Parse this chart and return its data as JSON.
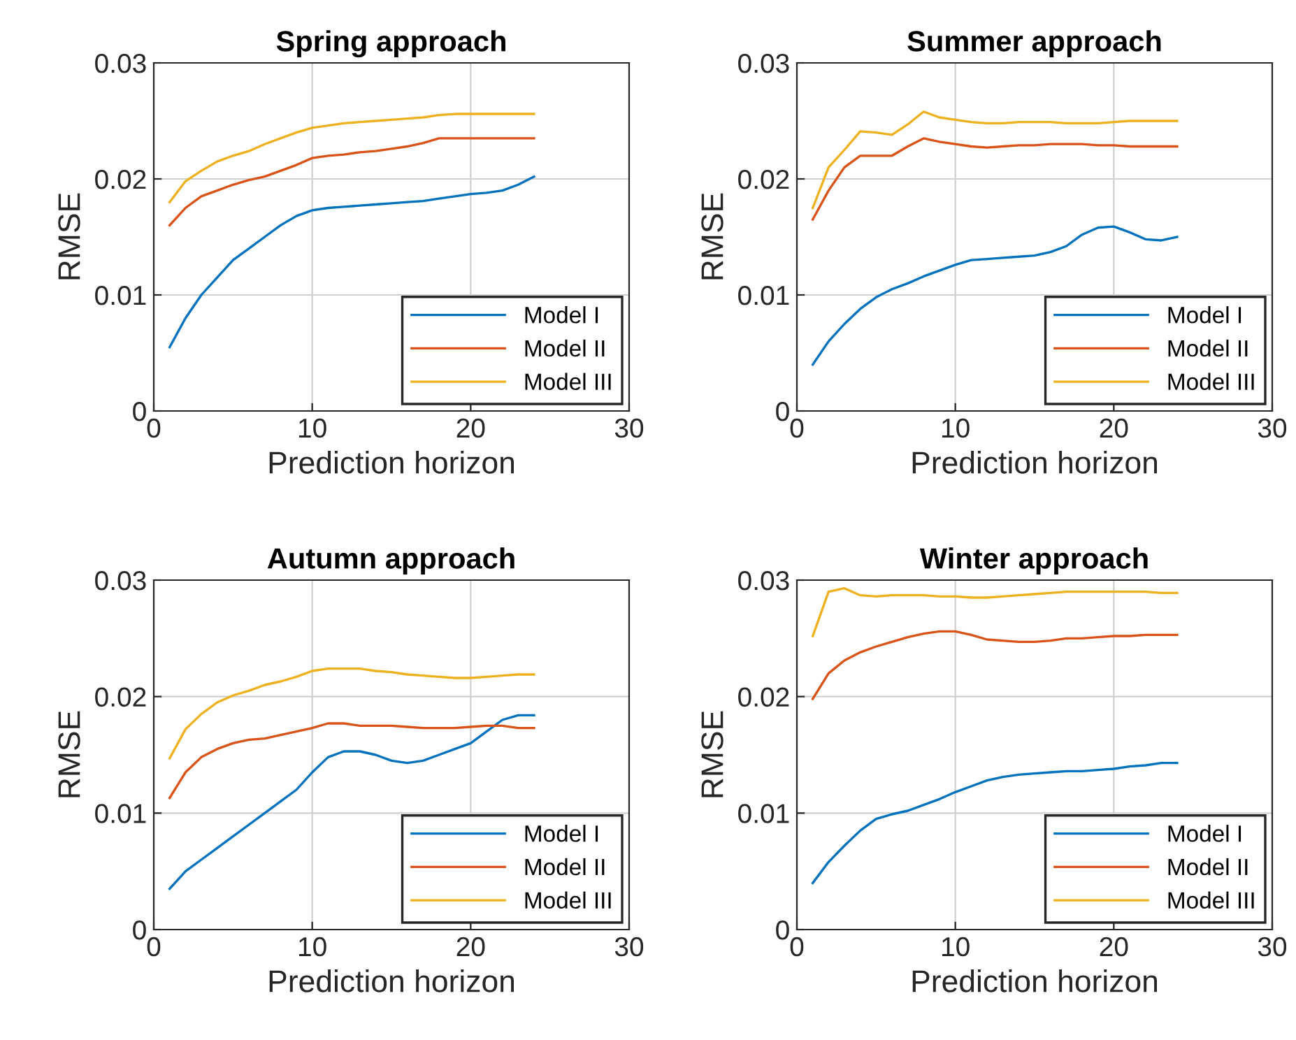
{
  "chart_data": [
    {
      "type": "line",
      "title": "Spring approach",
      "xlabel": "Prediction horizon",
      "ylabel": "RMSE",
      "x": [
        1,
        2,
        3,
        4,
        5,
        6,
        7,
        8,
        9,
        10,
        11,
        12,
        13,
        14,
        15,
        16,
        17,
        18,
        19,
        20,
        21,
        22,
        23,
        24
      ],
      "xlim": [
        0,
        30
      ],
      "xticks": [
        0,
        10,
        20,
        30
      ],
      "ylim": [
        0,
        0.03
      ],
      "yticks": [
        0,
        0.01,
        0.02,
        0.03
      ],
      "grid": true,
      "legend": "bottom right",
      "series": [
        {
          "name": "Model I",
          "color": "#0072bd",
          "values": [
            0.0055,
            0.008,
            0.01,
            0.0115,
            0.013,
            0.014,
            0.015,
            0.016,
            0.0168,
            0.0173,
            0.0175,
            0.0176,
            0.0177,
            0.0178,
            0.0179,
            0.018,
            0.0181,
            0.0183,
            0.0185,
            0.0187,
            0.0188,
            0.019,
            0.0195,
            0.0202
          ]
        },
        {
          "name": "Model II",
          "color": "#d95319",
          "values": [
            0.016,
            0.0175,
            0.0185,
            0.019,
            0.0195,
            0.0199,
            0.0202,
            0.0207,
            0.0212,
            0.0218,
            0.022,
            0.0221,
            0.0223,
            0.0224,
            0.0226,
            0.0228,
            0.0231,
            0.0235,
            0.0235,
            0.0235,
            0.0235,
            0.0235,
            0.0235,
            0.0235
          ]
        },
        {
          "name": "Model III",
          "color": "#edb120",
          "values": [
            0.018,
            0.0198,
            0.0207,
            0.0215,
            0.022,
            0.0224,
            0.023,
            0.0235,
            0.024,
            0.0244,
            0.0246,
            0.0248,
            0.0249,
            0.025,
            0.0251,
            0.0252,
            0.0253,
            0.0255,
            0.0256,
            0.0256,
            0.0256,
            0.0256,
            0.0256,
            0.0256
          ]
        }
      ]
    },
    {
      "type": "line",
      "title": "Summer approach",
      "xlabel": "Prediction horizon",
      "ylabel": "RMSE",
      "x": [
        1,
        2,
        3,
        4,
        5,
        6,
        7,
        8,
        9,
        10,
        11,
        12,
        13,
        14,
        15,
        16,
        17,
        18,
        19,
        20,
        21,
        22,
        23,
        24
      ],
      "xlim": [
        0,
        30
      ],
      "xticks": [
        0,
        10,
        20,
        30
      ],
      "ylim": [
        0,
        0.03
      ],
      "yticks": [
        0,
        0.01,
        0.02,
        0.03
      ],
      "grid": true,
      "legend": "bottom right",
      "series": [
        {
          "name": "Model I",
          "color": "#0072bd",
          "values": [
            0.004,
            0.006,
            0.0075,
            0.0088,
            0.0098,
            0.0105,
            0.011,
            0.0116,
            0.0121,
            0.0126,
            0.013,
            0.0131,
            0.0132,
            0.0133,
            0.0134,
            0.0137,
            0.0142,
            0.0152,
            0.0158,
            0.0159,
            0.0154,
            0.0148,
            0.0147,
            0.015
          ]
        },
        {
          "name": "Model II",
          "color": "#d95319",
          "values": [
            0.0165,
            0.019,
            0.021,
            0.022,
            0.022,
            0.022,
            0.0228,
            0.0235,
            0.0232,
            0.023,
            0.0228,
            0.0227,
            0.0228,
            0.0229,
            0.0229,
            0.023,
            0.023,
            0.023,
            0.0229,
            0.0229,
            0.0228,
            0.0228,
            0.0228,
            0.0228
          ]
        },
        {
          "name": "Model III",
          "color": "#edb120",
          "values": [
            0.0175,
            0.021,
            0.0225,
            0.0241,
            0.024,
            0.0238,
            0.0247,
            0.0258,
            0.0253,
            0.0251,
            0.0249,
            0.0248,
            0.0248,
            0.0249,
            0.0249,
            0.0249,
            0.0248,
            0.0248,
            0.0248,
            0.0249,
            0.025,
            0.025,
            0.025,
            0.025
          ]
        }
      ]
    },
    {
      "type": "line",
      "title": "Autumn approach",
      "xlabel": "Prediction horizon",
      "ylabel": "RMSE",
      "x": [
        1,
        2,
        3,
        4,
        5,
        6,
        7,
        8,
        9,
        10,
        11,
        12,
        13,
        14,
        15,
        16,
        17,
        18,
        19,
        20,
        21,
        22,
        23,
        24
      ],
      "xlim": [
        0,
        30
      ],
      "xticks": [
        0,
        10,
        20,
        30
      ],
      "ylim": [
        0,
        0.03
      ],
      "yticks": [
        0,
        0.01,
        0.02,
        0.03
      ],
      "grid": true,
      "legend": "bottom right",
      "series": [
        {
          "name": "Model I",
          "color": "#0072bd",
          "values": [
            0.0035,
            0.005,
            0.006,
            0.007,
            0.008,
            0.009,
            0.01,
            0.011,
            0.012,
            0.0135,
            0.0148,
            0.0153,
            0.0153,
            0.015,
            0.0145,
            0.0143,
            0.0145,
            0.015,
            0.0155,
            0.016,
            0.017,
            0.018,
            0.0184,
            0.0184
          ]
        },
        {
          "name": "Model II",
          "color": "#d95319",
          "values": [
            0.0113,
            0.0135,
            0.0148,
            0.0155,
            0.016,
            0.0163,
            0.0164,
            0.0167,
            0.017,
            0.0173,
            0.0177,
            0.0177,
            0.0175,
            0.0175,
            0.0175,
            0.0174,
            0.0173,
            0.0173,
            0.0173,
            0.0174,
            0.0175,
            0.0175,
            0.0173,
            0.0173
          ]
        },
        {
          "name": "Model III",
          "color": "#edb120",
          "values": [
            0.0147,
            0.0172,
            0.0185,
            0.0195,
            0.0201,
            0.0205,
            0.021,
            0.0213,
            0.0217,
            0.0222,
            0.0224,
            0.0224,
            0.0224,
            0.0222,
            0.0221,
            0.0219,
            0.0218,
            0.0217,
            0.0216,
            0.0216,
            0.0217,
            0.0218,
            0.0219,
            0.0219
          ]
        }
      ]
    },
    {
      "type": "line",
      "title": "Winter approach",
      "xlabel": "Prediction horizon",
      "ylabel": "RMSE",
      "x": [
        1,
        2,
        3,
        4,
        5,
        6,
        7,
        8,
        9,
        10,
        11,
        12,
        13,
        14,
        15,
        16,
        17,
        18,
        19,
        20,
        21,
        22,
        23,
        24
      ],
      "xlim": [
        0,
        30
      ],
      "xticks": [
        0,
        10,
        20,
        30
      ],
      "ylim": [
        0,
        0.03
      ],
      "yticks": [
        0,
        0.01,
        0.02,
        0.03
      ],
      "grid": true,
      "legend": "bottom right",
      "series": [
        {
          "name": "Model I",
          "color": "#0072bd",
          "values": [
            0.004,
            0.0058,
            0.0072,
            0.0085,
            0.0095,
            0.0099,
            0.0102,
            0.0107,
            0.0112,
            0.0118,
            0.0123,
            0.0128,
            0.0131,
            0.0133,
            0.0134,
            0.0135,
            0.0136,
            0.0136,
            0.0137,
            0.0138,
            0.014,
            0.0141,
            0.0143,
            0.0143
          ]
        },
        {
          "name": "Model II",
          "color": "#d95319",
          "values": [
            0.0198,
            0.022,
            0.0231,
            0.0238,
            0.0243,
            0.0247,
            0.0251,
            0.0254,
            0.0256,
            0.0256,
            0.0253,
            0.0249,
            0.0248,
            0.0247,
            0.0247,
            0.0248,
            0.025,
            0.025,
            0.0251,
            0.0252,
            0.0252,
            0.0253,
            0.0253,
            0.0253
          ]
        },
        {
          "name": "Model III",
          "color": "#edb120",
          "values": [
            0.0252,
            0.029,
            0.0293,
            0.0287,
            0.0286,
            0.0287,
            0.0287,
            0.0287,
            0.0286,
            0.0286,
            0.0285,
            0.0285,
            0.0286,
            0.0287,
            0.0288,
            0.0289,
            0.029,
            0.029,
            0.029,
            0.029,
            0.029,
            0.029,
            0.0289,
            0.0289
          ]
        }
      ]
    }
  ]
}
